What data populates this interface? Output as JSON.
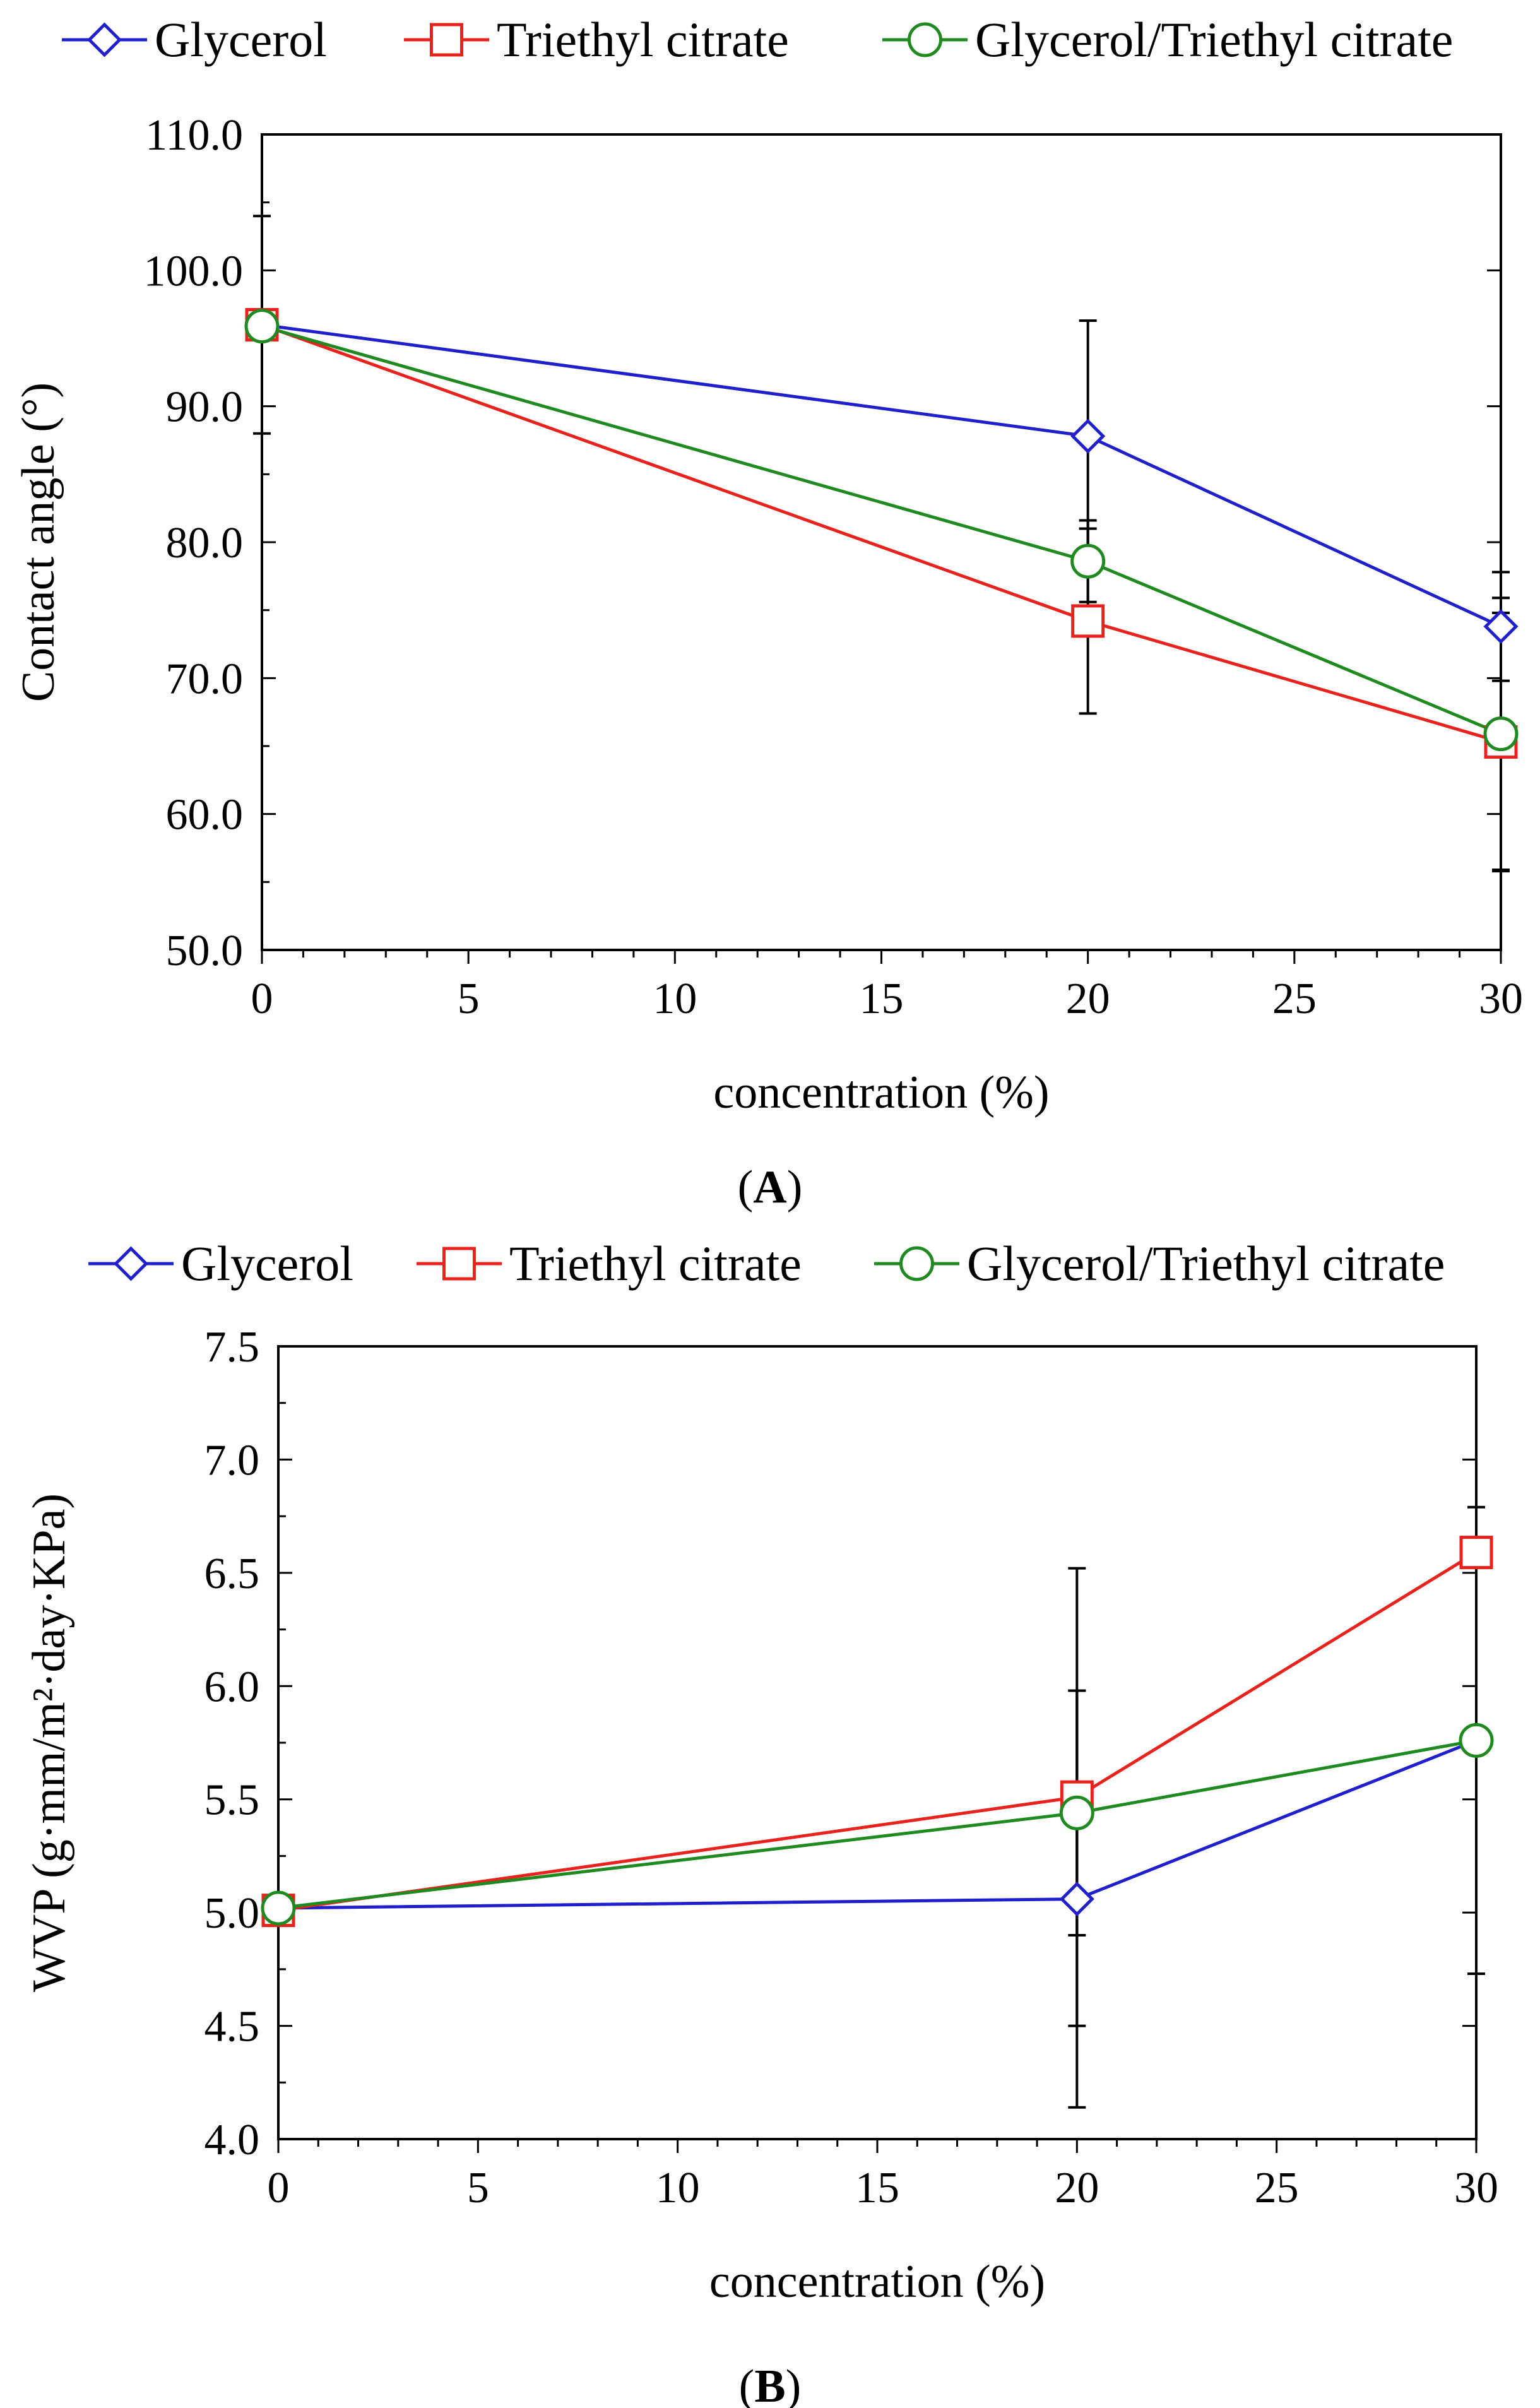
{
  "chart_data": [
    {
      "panel": "A",
      "type": "line",
      "xlabel": "concentration (%)",
      "ylabel": "Contact angle (°)",
      "xlim": [
        0,
        30
      ],
      "ylim": [
        50,
        110
      ],
      "xticks": [
        0,
        5,
        10,
        15,
        20,
        25,
        30
      ],
      "yticks": [
        50,
        60,
        70,
        80,
        90,
        100,
        110
      ],
      "xtick_labels": [
        "0",
        "5",
        "10",
        "15",
        "20",
        "25",
        "30"
      ],
      "ytick_labels": [
        "50.0",
        "60.0",
        "70.0",
        "80.0",
        "90.0",
        "100.0",
        "110.0"
      ],
      "legend_position": "top",
      "grid": false,
      "x": [
        0,
        20,
        30
      ],
      "series": [
        {
          "name": "Glycerol",
          "color": "#1f1fcc",
          "marker": "diamond",
          "values": [
            96.0,
            87.8,
            73.8
          ],
          "error": [
            8.0,
            8.5,
            4.0
          ]
        },
        {
          "name": "Triethyl citrate",
          "color": "#e8231d",
          "marker": "square",
          "values": [
            96.0,
            74.2,
            65.3
          ],
          "error": [
            0,
            6.8,
            9.5
          ]
        },
        {
          "name": "Glycerol/Triethyl citrate",
          "color": "#1f8a1f",
          "marker": "circle",
          "values": [
            95.9,
            78.6,
            65.9
          ],
          "error": [
            0,
            3.0,
            10.0
          ]
        }
      ]
    },
    {
      "panel": "B",
      "type": "line",
      "xlabel": "concentration (%)",
      "ylabel": "WVP (g·mm/m²·day·KPa)",
      "xlim": [
        0,
        30
      ],
      "ylim": [
        4.0,
        7.5
      ],
      "xticks": [
        0,
        5,
        10,
        15,
        20,
        25,
        30
      ],
      "yticks": [
        4.0,
        4.5,
        5.0,
        5.5,
        6.0,
        6.5,
        7.0,
        7.5
      ],
      "xtick_labels": [
        "0",
        "5",
        "10",
        "15",
        "20",
        "25",
        "30"
      ],
      "ytick_labels": [
        "4.0",
        "4.5",
        "5.0",
        "5.5",
        "6.0",
        "6.5",
        "7.0",
        "7.5"
      ],
      "legend_position": "top",
      "grid": false,
      "x": [
        0,
        20,
        30
      ],
      "series": [
        {
          "name": "Glycerol",
          "color": "#1f1fcc",
          "marker": "diamond",
          "values": [
            5.02,
            5.06,
            5.76
          ],
          "error": [
            0,
            0.92,
            0
          ]
        },
        {
          "name": "Triethyl citrate",
          "color": "#e8231d",
          "marker": "square",
          "values": [
            5.01,
            5.51,
            6.59
          ],
          "error": [
            0,
            1.01,
            0
          ]
        },
        {
          "name": "Glycerol/Triethyl citrate",
          "color": "#1f8a1f",
          "marker": "circle",
          "values": [
            5.02,
            5.44,
            5.76
          ],
          "error": [
            0,
            0.54,
            1.03
          ]
        }
      ]
    }
  ]
}
